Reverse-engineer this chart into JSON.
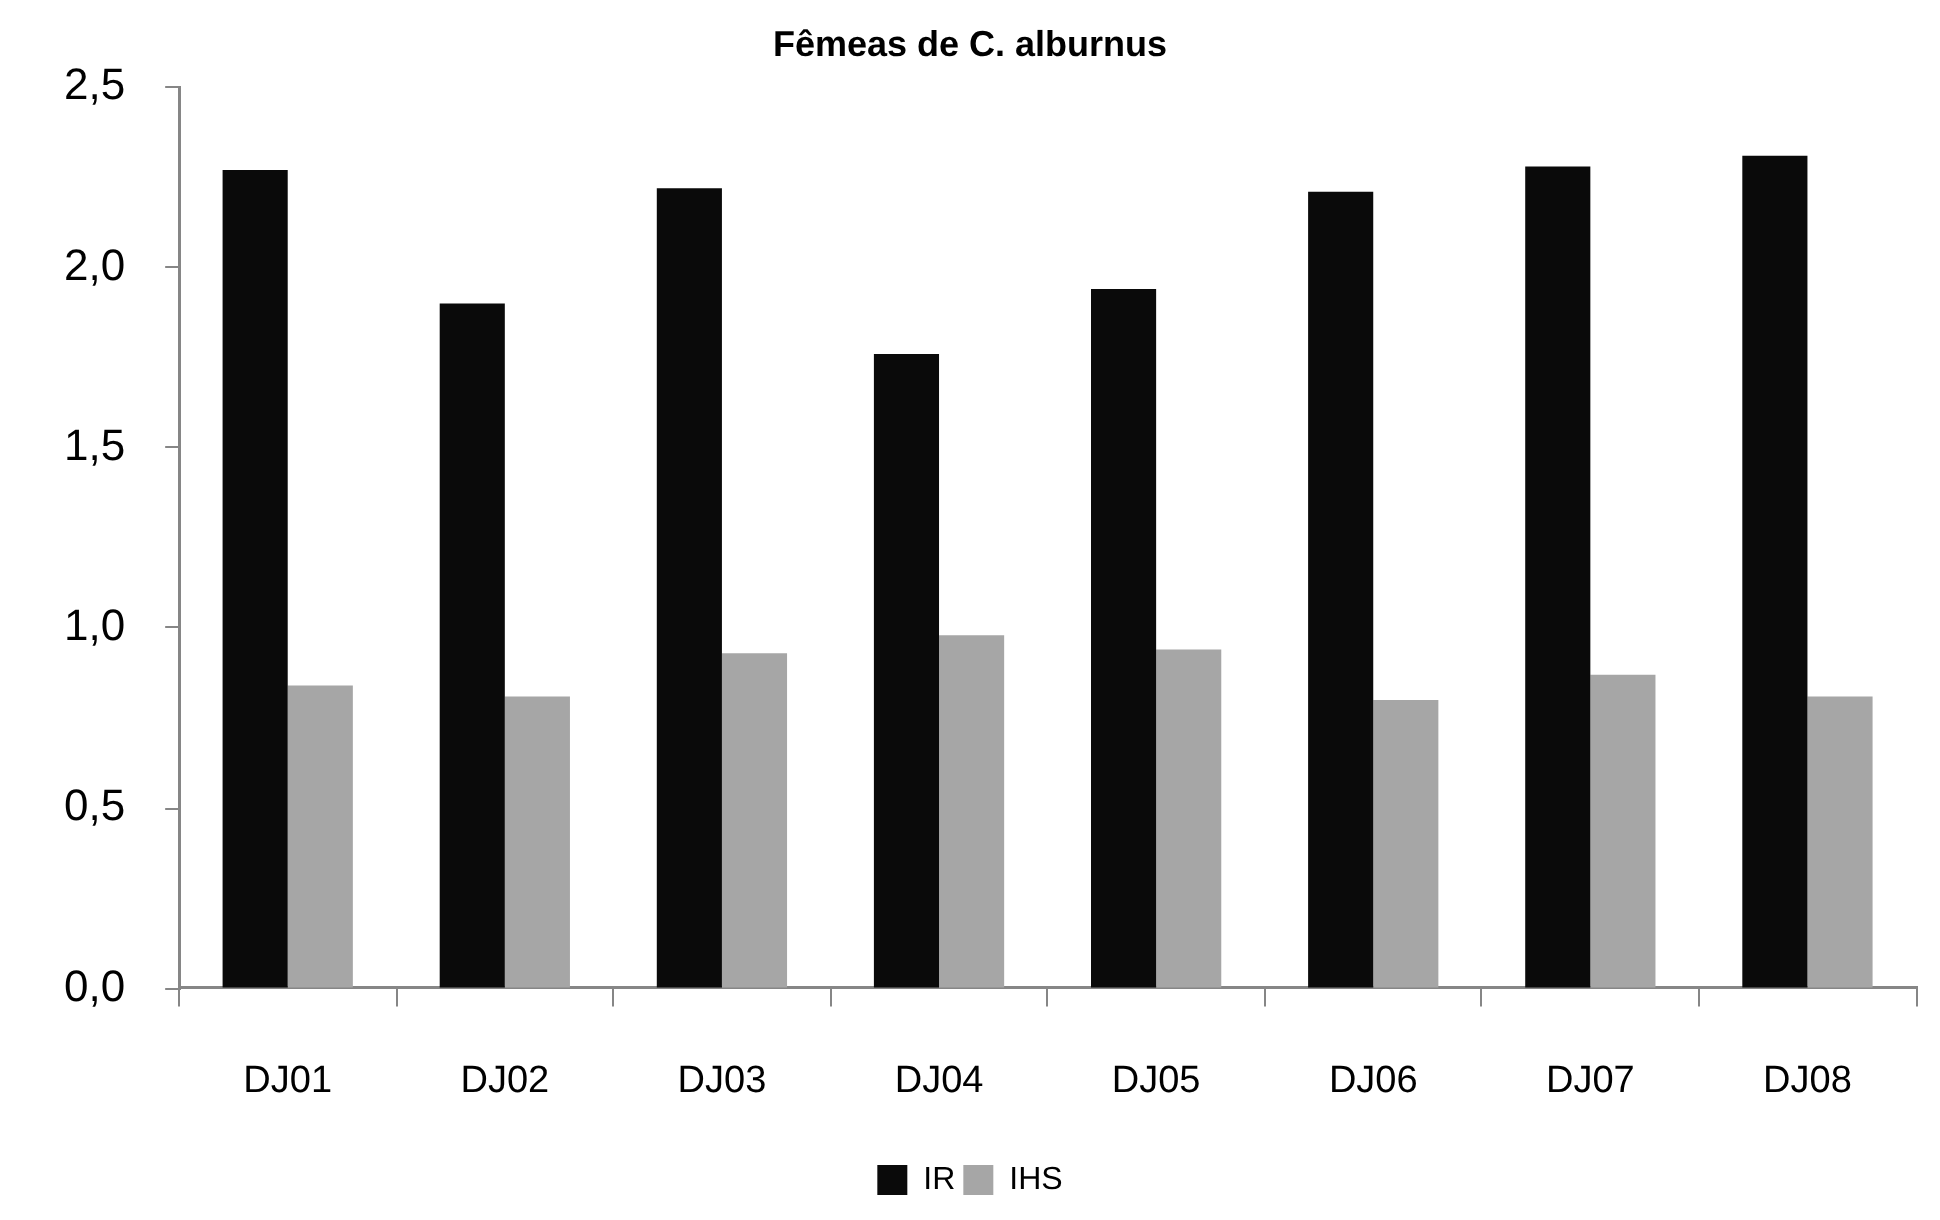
{
  "chart_data": {
    "type": "bar",
    "title": "Fêmeas de C. alburnus",
    "categories": [
      "DJ01",
      "DJ02",
      "DJ03",
      "DJ04",
      "DJ05",
      "DJ06",
      "DJ07",
      "DJ08"
    ],
    "series": [
      {
        "name": "IR",
        "color": "#0a0a0a",
        "values": [
          2.27,
          1.9,
          2.22,
          1.76,
          1.94,
          2.21,
          2.28,
          2.31
        ]
      },
      {
        "name": "IHS",
        "color": "#a6a6a6",
        "values": [
          0.84,
          0.81,
          0.93,
          0.98,
          0.94,
          0.8,
          0.87,
          0.81
        ]
      }
    ],
    "ylim": [
      0,
      2.5
    ],
    "yticks": [
      {
        "value": 0,
        "label": "0,0"
      },
      {
        "value": 0.5,
        "label": "0,5"
      },
      {
        "value": 1,
        "label": "1,0"
      },
      {
        "value": 1.5,
        "label": "1,5"
      },
      {
        "value": 2,
        "label": "2,0"
      },
      {
        "value": 2.5,
        "label": "2,5"
      }
    ],
    "grid": false,
    "legend": "bottom"
  }
}
